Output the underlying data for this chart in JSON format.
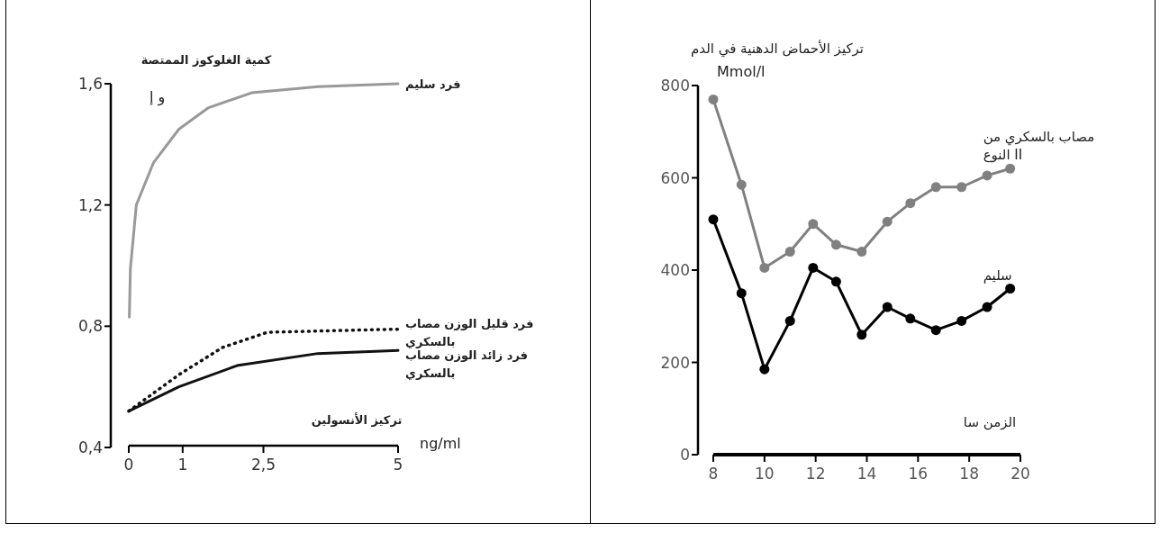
{
  "chart_data": [
    {
      "type": "line",
      "ylabel": "كمية الغلوكوز الممتصة",
      "xlabel": "تركيز الأنسولين",
      "annotations": [
        "و إ",
        "ng/ml"
      ],
      "xlim": [
        0,
        5
      ],
      "xticks": [
        0,
        1,
        {
          "value": 2.5,
          "label": "2,5"
        },
        5
      ],
      "ylim": [
        0.4,
        1.6
      ],
      "yticks": [
        {
          "value": 0.4,
          "label": "0,4"
        },
        {
          "value": 0.8,
          "label": "0,8"
        },
        {
          "value": 1.2,
          "label": "1,2"
        },
        {
          "value": 1.6,
          "label": "1,6"
        }
      ],
      "series": [
        {
          "name": "فرد سليم",
          "color": "#999999",
          "line_style": "solid",
          "x": [
            0.01,
            0.03,
            0.14,
            0.46,
            0.93,
            1.47,
            2.28,
            3.51,
            5
          ],
          "values": [
            0.83,
            0.99,
            1.2,
            1.34,
            1.45,
            1.52,
            1.57,
            1.59,
            1.6
          ]
        },
        {
          "name": "فرد قليل الوزن مصاب بالسكري",
          "color": "#111111",
          "line_style": "dotted",
          "x": [
            0,
            0.93,
            1.74,
            2.57,
            4.9,
            5
          ],
          "values": [
            0.52,
            0.64,
            0.73,
            0.78,
            0.79,
            0.79
          ]
        },
        {
          "name": "فرد زائد الوزن مصاب بالسكري",
          "color": "#111111",
          "line_style": "solid",
          "x": [
            0,
            0.93,
            2.01,
            3.51,
            5
          ],
          "values": [
            0.52,
            0.6,
            0.67,
            0.71,
            0.72
          ]
        }
      ]
    },
    {
      "type": "line",
      "ylabel": "تركيز الأحماض الدهنية في الدم",
      "xlabel": "الزمن سا",
      "annotations": [
        "Mmol/l"
      ],
      "marker": "circle",
      "xlim": [
        8,
        20
      ],
      "xticks": [
        8,
        10,
        12,
        14,
        16,
        18,
        20
      ],
      "ylim": [
        0,
        800
      ],
      "yticks": [
        0,
        200,
        400,
        600,
        800
      ],
      "x": [
        8,
        9.1,
        10,
        11,
        11.9,
        12.8,
        13.8,
        14.8,
        15.7,
        16.7,
        17.7,
        18.7,
        19.6
      ],
      "series": [
        {
          "name": "مصاب بالسكري من النوع II",
          "color": "#808080",
          "values": [
            770,
            585,
            405,
            440,
            500,
            455,
            440,
            505,
            545,
            580,
            580,
            605,
            620
          ]
        },
        {
          "name": "سليم",
          "color": "#000000",
          "values": [
            510,
            350,
            185,
            290,
            405,
            375,
            260,
            320,
            295,
            270,
            290,
            320,
            360
          ]
        }
      ]
    }
  ]
}
